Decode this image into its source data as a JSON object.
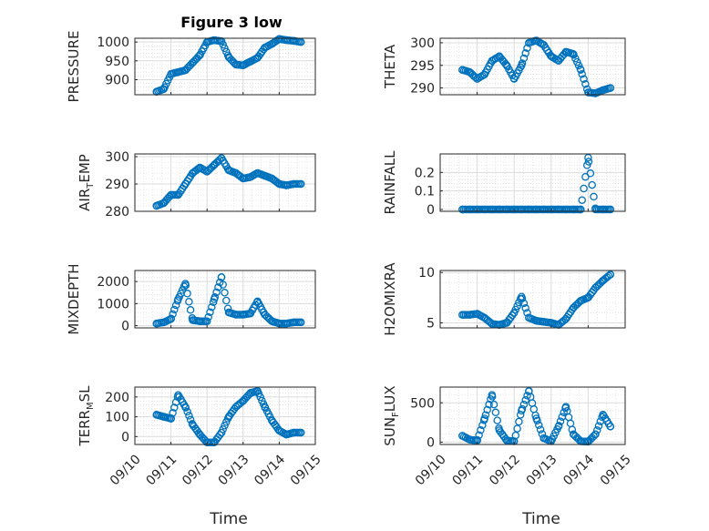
{
  "figure": {
    "title": "Figure 3 low",
    "marker_color": "#0072BD",
    "x_axis": {
      "label": "Time",
      "ticks": [
        "09/10",
        "09/11",
        "09/12",
        "09/13",
        "09/14",
        "09/15"
      ]
    }
  },
  "chart_data": [
    {
      "type": "scatter",
      "ylabel": {
        "main": "PRESSURE",
        "sub": ""
      },
      "xlim": [
        0,
        5
      ],
      "ylim": [
        860,
        1010
      ],
      "yticks": [
        {
          "v": 900,
          "label": "900"
        },
        {
          "v": 950,
          "label": "950"
        },
        {
          "v": 1000,
          "label": "1000"
        }
      ],
      "grid": true,
      "x": [
        0.6,
        0.8,
        1.0,
        1.2,
        1.4,
        1.6,
        1.8,
        2.0,
        2.2,
        2.4,
        2.6,
        2.8,
        3.0,
        3.2,
        3.4,
        3.6,
        3.8,
        4.0,
        4.2,
        4.4,
        4.6
      ],
      "y": [
        868,
        875,
        915,
        920,
        925,
        945,
        965,
        1000,
        1005,
        1002,
        960,
        940,
        938,
        948,
        958,
        985,
        995,
        1008,
        1005,
        1003,
        1000
      ]
    },
    {
      "type": "scatter",
      "ylabel": {
        "main": "THETA",
        "sub": ""
      },
      "xlim": [
        0,
        5
      ],
      "ylim": [
        288.5,
        301
      ],
      "yticks": [
        {
          "v": 290,
          "label": "290"
        },
        {
          "v": 295,
          "label": "295"
        },
        {
          "v": 300,
          "label": "300"
        }
      ],
      "grid": true,
      "x": [
        0.6,
        0.8,
        1.0,
        1.2,
        1.4,
        1.6,
        1.8,
        2.0,
        2.2,
        2.4,
        2.6,
        2.8,
        3.0,
        3.2,
        3.4,
        3.6,
        3.8,
        4.0,
        4.2,
        4.4,
        4.6
      ],
      "y": [
        294,
        293.5,
        292,
        293,
        296,
        297,
        295,
        292,
        295,
        300,
        300.5,
        299.5,
        297,
        296,
        298,
        297.5,
        294,
        289,
        288.8,
        289.5,
        290
      ]
    },
    {
      "type": "scatter",
      "ylabel": {
        "main": "AIR",
        "sub": "T",
        "rest": "EMP"
      },
      "xlim": [
        0,
        5
      ],
      "ylim": [
        280,
        301
      ],
      "yticks": [
        {
          "v": 280,
          "label": "280"
        },
        {
          "v": 290,
          "label": "290"
        },
        {
          "v": 300,
          "label": "300"
        }
      ],
      "grid": true,
      "x": [
        0.6,
        0.8,
        1.0,
        1.2,
        1.4,
        1.6,
        1.8,
        2.0,
        2.2,
        2.4,
        2.6,
        2.8,
        3.0,
        3.2,
        3.4,
        3.6,
        3.8,
        4.0,
        4.2,
        4.4,
        4.6
      ],
      "y": [
        282,
        283,
        286,
        286,
        290,
        294,
        296,
        294.5,
        297,
        299.5,
        295,
        294,
        292,
        292.5,
        294,
        293,
        292,
        290,
        289.5,
        290,
        290
      ]
    },
    {
      "type": "scatter",
      "ylabel": {
        "main": "RAINFALL",
        "sub": ""
      },
      "xlim": [
        0,
        5
      ],
      "ylim": [
        -0.01,
        0.3
      ],
      "yticks": [
        {
          "v": 0,
          "label": "0"
        },
        {
          "v": 0.1,
          "label": "0.1"
        },
        {
          "v": 0.2,
          "label": "0.2"
        }
      ],
      "grid": true,
      "x": [
        0.6,
        0.8,
        1.0,
        1.2,
        1.4,
        1.6,
        1.8,
        2.0,
        2.2,
        2.4,
        2.6,
        2.8,
        3.0,
        3.2,
        3.4,
        3.6,
        3.8,
        4.0,
        4.2,
        4.4,
        4.6
      ],
      "y": [
        0,
        0,
        0,
        0,
        0,
        0,
        0,
        0,
        0,
        0,
        0,
        0,
        0,
        0,
        0,
        0,
        0,
        0.28,
        0,
        0,
        0
      ]
    },
    {
      "type": "scatter",
      "ylabel": {
        "main": "MIXDEPTH",
        "sub": ""
      },
      "xlim": [
        0,
        5
      ],
      "ylim": [
        -100,
        2500
      ],
      "yticks": [
        {
          "v": 0,
          "label": "0"
        },
        {
          "v": 1000,
          "label": "1000"
        },
        {
          "v": 2000,
          "label": "2000"
        }
      ],
      "grid": true,
      "x": [
        0.6,
        0.8,
        1.0,
        1.2,
        1.4,
        1.6,
        1.8,
        2.0,
        2.2,
        2.4,
        2.6,
        2.8,
        3.0,
        3.2,
        3.4,
        3.6,
        3.8,
        4.0,
        4.2,
        4.4,
        4.6
      ],
      "y": [
        100,
        150,
        300,
        1200,
        1900,
        250,
        200,
        200,
        1200,
        2200,
        600,
        500,
        500,
        550,
        1100,
        500,
        200,
        100,
        100,
        150,
        150
      ]
    },
    {
      "type": "scatter",
      "ylabel": {
        "main": "H2OMIXRA",
        "sub": ""
      },
      "xlim": [
        0,
        5
      ],
      "ylim": [
        4.5,
        10.2
      ],
      "yticks": [
        {
          "v": 5,
          "label": "5"
        },
        {
          "v": 10,
          "label": "10"
        }
      ],
      "grid": true,
      "x": [
        0.6,
        0.8,
        1.0,
        1.2,
        1.4,
        1.6,
        1.8,
        2.0,
        2.2,
        2.4,
        2.6,
        2.8,
        3.0,
        3.2,
        3.4,
        3.6,
        3.8,
        4.0,
        4.2,
        4.4,
        4.6
      ],
      "y": [
        5.8,
        5.8,
        5.9,
        5.5,
        4.9,
        4.8,
        5.0,
        6.0,
        7.6,
        5.5,
        5.2,
        5.1,
        5.0,
        4.8,
        5.4,
        6.5,
        7.2,
        7.5,
        8.5,
        9.2,
        9.8
      ]
    },
    {
      "type": "scatter",
      "ylabel": {
        "main": "TERR",
        "sub": "M",
        "rest": "SL"
      },
      "xlim": [
        0,
        5
      ],
      "ylim": [
        -40,
        250
      ],
      "yticks": [
        {
          "v": 0,
          "label": "0"
        },
        {
          "v": 100,
          "label": "100"
        },
        {
          "v": 200,
          "label": "200"
        }
      ],
      "grid": true,
      "x": [
        0.6,
        0.8,
        1.0,
        1.2,
        1.4,
        1.6,
        1.8,
        2.0,
        2.2,
        2.4,
        2.6,
        2.8,
        3.0,
        3.2,
        3.4,
        3.6,
        3.8,
        4.0,
        4.2,
        4.4,
        4.6
      ],
      "y": [
        110,
        100,
        90,
        210,
        150,
        60,
        10,
        -30,
        -30,
        20,
        100,
        150,
        180,
        220,
        230,
        150,
        80,
        30,
        10,
        20,
        20
      ]
    },
    {
      "type": "scatter",
      "ylabel": {
        "main": "SUN",
        "sub": "F",
        "rest": "LUX"
      },
      "xlim": [
        0,
        5
      ],
      "ylim": [
        -30,
        700
      ],
      "yticks": [
        {
          "v": 0,
          "label": "0"
        },
        {
          "v": 500,
          "label": "500"
        }
      ],
      "grid": true,
      "x": [
        0.6,
        0.8,
        1.0,
        1.2,
        1.4,
        1.6,
        1.8,
        2.0,
        2.2,
        2.4,
        2.6,
        2.8,
        3.0,
        3.2,
        3.4,
        3.6,
        3.8,
        4.0,
        4.2,
        4.4,
        4.6
      ],
      "y": [
        80,
        30,
        20,
        300,
        600,
        150,
        20,
        10,
        400,
        650,
        300,
        50,
        10,
        200,
        450,
        100,
        10,
        5,
        100,
        350,
        200
      ]
    }
  ]
}
